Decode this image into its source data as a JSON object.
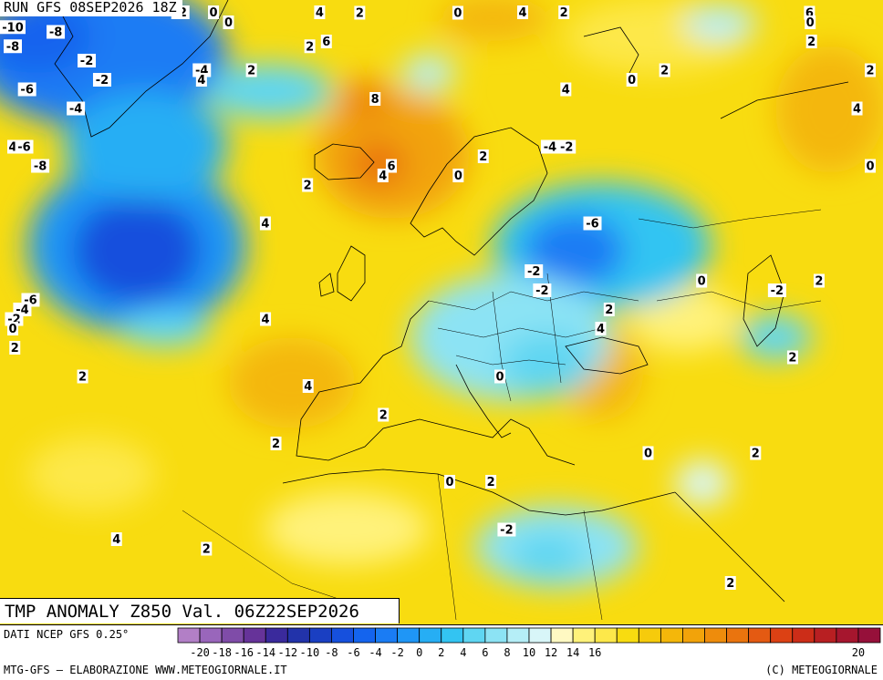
{
  "run_label": "RUN GFS 08SEP2026 18Z",
  "title": "TMP ANOMALY Z850 Val. 06Z22SEP2026",
  "footer": {
    "data_source": "DATI NCEP GFS 0.25°",
    "credit_left": "MTG-GFS — ELABORAZIONE WWW.METEOGIORNALE.IT",
    "credit_right": "(C) METEOGIORNALE"
  },
  "legend": {
    "colors": [
      "#b27fc6",
      "#9966bb",
      "#7f4ca8",
      "#663399",
      "#3a2a9c",
      "#2233aa",
      "#1a3fc2",
      "#1650dd",
      "#1464ee",
      "#1a7cf4",
      "#1f96f6",
      "#26aef4",
      "#33c4f2",
      "#5fd6f2",
      "#8ce3f4",
      "#b5eef7",
      "#d8f6f8",
      "#fff9c2",
      "#fff27a",
      "#fde84a",
      "#f8dc10",
      "#f6cb0c",
      "#f4b70a",
      "#f2a30a",
      "#ee8c0c",
      "#ea740e",
      "#e45a12",
      "#dc4114",
      "#cc2d18",
      "#b81f22",
      "#a6162e",
      "#96103a"
    ],
    "tick_labels": [
      "-20",
      "-18",
      "-16",
      "-14",
      "-12",
      "-10",
      "-8",
      "-6",
      "-4",
      "-2",
      "0",
      "2",
      "4",
      "6",
      "8",
      "10",
      "12",
      "14",
      "16",
      "20"
    ],
    "tick_values": [
      -20,
      -18,
      -16,
      -14,
      -12,
      -10,
      -8,
      -6,
      -4,
      -2,
      0,
      2,
      4,
      6,
      8,
      10,
      12,
      14,
      16,
      20
    ]
  },
  "contour_labels": [
    {
      "text": "-10",
      "lon": -49,
      "lat": 74.5
    },
    {
      "text": "-8",
      "lon": -50,
      "lat": 72.5
    },
    {
      "text": "-8",
      "lon": -37,
      "lat": 74
    },
    {
      "text": "-2",
      "lon": -22,
      "lat": 77
    },
    {
      "text": "0",
      "lon": -18,
      "lat": 78
    },
    {
      "text": "4",
      "lon": -5,
      "lat": 79
    },
    {
      "text": "4",
      "lon": 20,
      "lat": 79.5
    },
    {
      "text": "6",
      "lon": 55,
      "lat": 76
    },
    {
      "text": "2",
      "lon": 0,
      "lat": 76
    },
    {
      "text": "2",
      "lon": 25,
      "lat": 77
    },
    {
      "text": "0",
      "lon": -16,
      "lat": 75
    },
    {
      "text": "6",
      "lon": -4,
      "lat": 73
    },
    {
      "text": "0",
      "lon": 12,
      "lat": 76
    },
    {
      "text": "-2",
      "lon": -33,
      "lat": 71
    },
    {
      "text": "-4",
      "lon": -19,
      "lat": 70
    },
    {
      "text": "2",
      "lon": -6,
      "lat": 72.5
    },
    {
      "text": "4",
      "lon": -19,
      "lat": 69
    },
    {
      "text": "-2",
      "lon": -31,
      "lat": 69
    },
    {
      "text": "2",
      "lon": -13,
      "lat": 70
    },
    {
      "text": "-6",
      "lon": -40,
      "lat": 68
    },
    {
      "text": "-4",
      "lon": -34,
      "lat": 66
    },
    {
      "text": "8",
      "lon": 2,
      "lat": 67
    },
    {
      "text": "4",
      "lon": -54,
      "lat": 62
    },
    {
      "text": "-6",
      "lon": -40,
      "lat": 62
    },
    {
      "text": "-8",
      "lon": -38,
      "lat": 60
    },
    {
      "text": "6",
      "lon": 4,
      "lat": 60
    },
    {
      "text": "4",
      "lon": 3,
      "lat": 59
    },
    {
      "text": "2",
      "lon": -6,
      "lat": 58
    },
    {
      "text": "4",
      "lon": -11,
      "lat": 54
    },
    {
      "text": "2",
      "lon": 15,
      "lat": 61
    },
    {
      "text": "0",
      "lon": 12,
      "lat": 59
    },
    {
      "text": "-4",
      "lon": 23,
      "lat": 62
    },
    {
      "text": "-2",
      "lon": 25,
      "lat": 62
    },
    {
      "text": "-6",
      "lon": 28,
      "lat": 54
    },
    {
      "text": "4",
      "lon": 25,
      "lat": 68
    },
    {
      "text": "0",
      "lon": 33,
      "lat": 69
    },
    {
      "text": "2",
      "lon": 37,
      "lat": 70
    },
    {
      "text": "0",
      "lon": 55,
      "lat": 75
    },
    {
      "text": "2",
      "lon": 55,
      "lat": 73
    },
    {
      "text": "2",
      "lon": 70,
      "lat": 70
    },
    {
      "text": "4",
      "lon": 60,
      "lat": 66
    },
    {
      "text": "0",
      "lon": 70,
      "lat": 60
    },
    {
      "text": "-6",
      "lon": -39,
      "lat": 46
    },
    {
      "text": "-4",
      "lon": -40,
      "lat": 45
    },
    {
      "text": "-2",
      "lon": -41,
      "lat": 44
    },
    {
      "text": "0",
      "lon": -42,
      "lat": 43
    },
    {
      "text": "2",
      "lon": -41,
      "lat": 41
    },
    {
      "text": "2",
      "lon": -33,
      "lat": 38
    },
    {
      "text": "4",
      "lon": -11,
      "lat": 44
    },
    {
      "text": "4",
      "lon": -6,
      "lat": 37
    },
    {
      "text": "2",
      "lon": -10,
      "lat": 31
    },
    {
      "text": "2",
      "lon": 3,
      "lat": 34
    },
    {
      "text": "-2",
      "lon": 21,
      "lat": 49
    },
    {
      "text": "-2",
      "lon": 22,
      "lat": 47
    },
    {
      "text": "2",
      "lon": 30,
      "lat": 45
    },
    {
      "text": "4",
      "lon": 29,
      "lat": 43
    },
    {
      "text": "0",
      "lon": 17,
      "lat": 38
    },
    {
      "text": "0",
      "lon": 41,
      "lat": 48
    },
    {
      "text": "-2",
      "lon": 50,
      "lat": 47
    },
    {
      "text": "2",
      "lon": 55,
      "lat": 48
    },
    {
      "text": "2",
      "lon": 52,
      "lat": 40
    },
    {
      "text": "0",
      "lon": 35,
      "lat": 30
    },
    {
      "text": "2",
      "lon": 48,
      "lat": 30
    },
    {
      "text": "0",
      "lon": 11,
      "lat": 27
    },
    {
      "text": "2",
      "lon": 16,
      "lat": 27
    },
    {
      "text": "-2",
      "lon": 18,
      "lat": 22
    },
    {
      "text": "4",
      "lon": -30,
      "lat": 21
    },
    {
      "text": "2",
      "lon": -19,
      "lat": 20
    },
    {
      "text": "2",
      "lon": 46,
      "lat": 16
    }
  ]
}
